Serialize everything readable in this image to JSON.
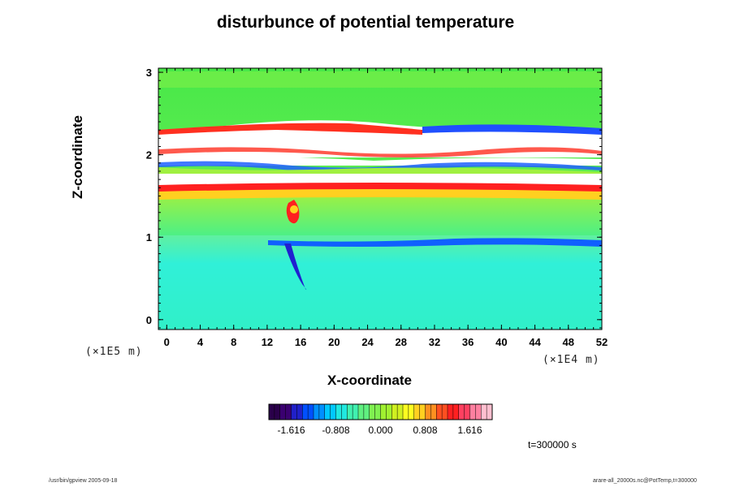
{
  "chart_data": {
    "type": "heatmap",
    "title": "disturbunce of potential temperature",
    "xlabel": "X-coordinate",
    "ylabel": "Z-coordinate",
    "x_scale_label": "(×1E4 m)",
    "y_scale_label": "(×1E5 m)",
    "x_ticks": [
      "0",
      "4",
      "8",
      "12",
      "16",
      "20",
      "24",
      "28",
      "32",
      "36",
      "40",
      "44",
      "48",
      "52"
    ],
    "y_ticks": [
      "0",
      "1",
      "2",
      "3"
    ],
    "xlim": [
      -1,
      52
    ],
    "ylim": [
      -0.12,
      3.05
    ],
    "colorbar": {
      "min": -2.02,
      "max": 2.02,
      "tick_labels": [
        "-1.616",
        "-0.808",
        "0.000",
        "0.808",
        "1.616"
      ],
      "tick_values": [
        -1.616,
        -0.808,
        0.0,
        0.808,
        1.616
      ],
      "colors": [
        "#2a004a",
        "#3a0070",
        "#2020c8",
        "#0050ff",
        "#0090ff",
        "#00c8ff",
        "#20e8e0",
        "#40f0b0",
        "#60f080",
        "#80f050",
        "#a0f030",
        "#d0f020",
        "#ffff20",
        "#ffd020",
        "#ff9020",
        "#ff5020",
        "#ff2020",
        "#ff4060",
        "#ff80a0",
        "#ffc0d0"
      ]
    },
    "time_label": "t=300000 s"
  },
  "footer": {
    "left": "/usr/bin/gpview 2005-09-18",
    "right": "arare-all_20000s.nc@PotTemp,t=300000"
  }
}
